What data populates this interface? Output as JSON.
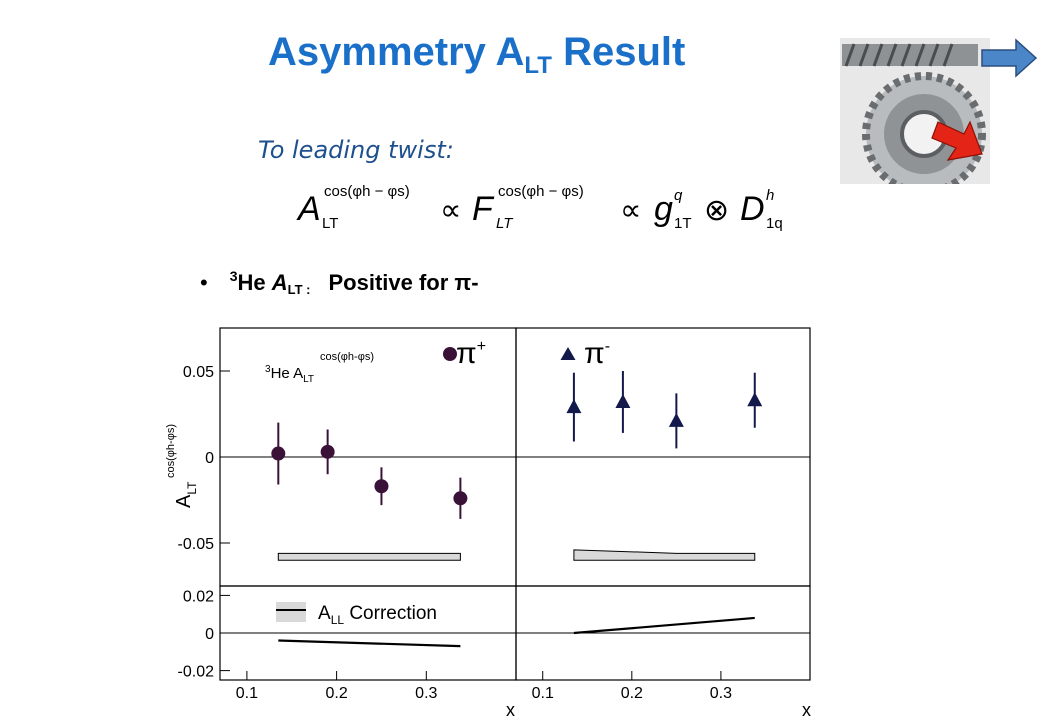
{
  "slide": {
    "title_main": "Asymmetry A",
    "title_sub": "LT",
    "title_end": " Result",
    "subtitle": "To leading twist:",
    "bullet": {
      "marker": "•",
      "sup": "3",
      "he": "He ",
      "a": "A",
      "lt": "LT :",
      "text": "Positive for π-"
    }
  },
  "formula": {
    "a": "A",
    "a_sub": "LT",
    "cos_sup": "cos(φh − φs)",
    "prop": "∝",
    "f": "F",
    "f_sub": "LT",
    "g": "g",
    "g_sup": "q",
    "g_sub": "1T",
    "otimes": "⊗",
    "d": "D",
    "d_sup": "h",
    "d_sub": "1q"
  },
  "chart_data": {
    "type": "scatter",
    "panels": [
      {
        "name": "π+",
        "label": "π",
        "label_sup": "+",
        "marker": "circle",
        "color": "#3a1238",
        "points": [
          {
            "x": 0.135,
            "y": 0.002,
            "err": 0.018
          },
          {
            "x": 0.19,
            "y": 0.003,
            "err": 0.013
          },
          {
            "x": 0.25,
            "y": -0.017,
            "err": 0.011
          },
          {
            "x": 0.338,
            "y": -0.024,
            "err": 0.012
          }
        ],
        "systematic_band": {
          "x": [
            0.135,
            0.338
          ],
          "low": [
            -0.06,
            -0.06
          ],
          "high": [
            -0.056,
            -0.056
          ]
        },
        "correction": {
          "x": [
            0.135,
            0.338
          ],
          "y": [
            -0.004,
            -0.007
          ]
        }
      },
      {
        "name": "π-",
        "label": "π",
        "label_sup": "-",
        "marker": "triangle",
        "color": "#13194a",
        "points": [
          {
            "x": 0.135,
            "y": 0.029,
            "err": 0.02
          },
          {
            "x": 0.19,
            "y": 0.032,
            "err": 0.018
          },
          {
            "x": 0.25,
            "y": 0.021,
            "err": 0.016
          },
          {
            "x": 0.338,
            "y": 0.033,
            "err": 0.016
          }
        ],
        "systematic_band": {
          "x": [
            0.135,
            0.25,
            0.338
          ],
          "low": [
            -0.06,
            -0.06,
            -0.06
          ],
          "high": [
            -0.054,
            -0.056,
            -0.056
          ]
        },
        "correction": {
          "x": [
            0.135,
            0.338
          ],
          "y": [
            0.0,
            0.008
          ]
        }
      }
    ],
    "in_plot_label": {
      "sup": "3",
      "text": "He A",
      "sub": "LT",
      "exp": "cos(φh-φs)"
    },
    "ylabel": {
      "a": "A",
      "sub": "LT",
      "sup": "cos(φh-φs)"
    },
    "xlabel": "x",
    "xlim": [
      0.07,
      0.4
    ],
    "ylim_top": [
      -0.075,
      0.075
    ],
    "ylim_bottom": [
      -0.025,
      0.025
    ],
    "xticks": [
      "0.1",
      "0.2",
      "0.3"
    ],
    "xtick_values": [
      0.1,
      0.2,
      0.3
    ],
    "yticks_top": [
      "0.05",
      "0",
      "-0.05"
    ],
    "ytick_values_top": [
      0.05,
      0,
      -0.05
    ],
    "yticks_bottom": [
      "0.02",
      "0",
      "-0.02"
    ],
    "ytick_values_bottom": [
      0.02,
      0,
      -0.02
    ],
    "legend": {
      "a": "A",
      "sub": "LL",
      "text": " Correction"
    }
  }
}
